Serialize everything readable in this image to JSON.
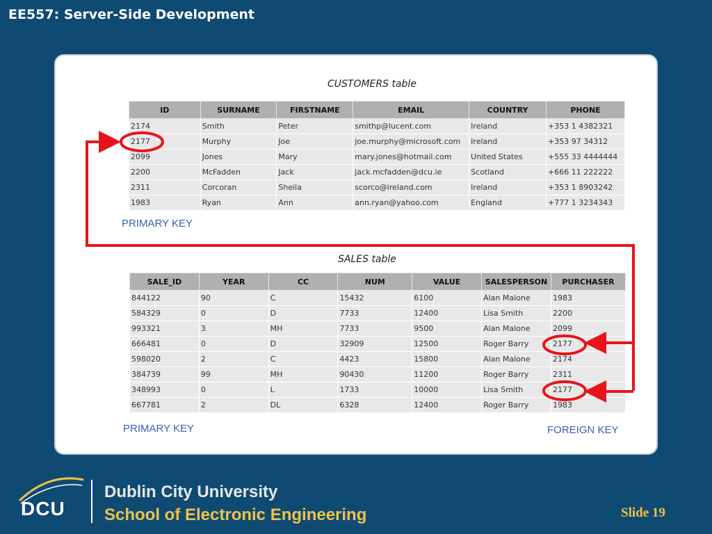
{
  "header": {
    "title": "EE557: Server-Side Development"
  },
  "customers": {
    "caption": "CUSTOMERS table",
    "columns": [
      "ID",
      "SURNAME",
      "FIRSTNAME",
      "EMAIL",
      "COUNTRY",
      "PHONE"
    ],
    "rows": [
      [
        "2174",
        "Smith",
        "Peter",
        "smithp@lucent.com",
        "Ireland",
        "+353 1 4382321"
      ],
      [
        "2177",
        "Murphy",
        "Joe",
        "joe.murphy@microsoft.com",
        "Ireland",
        "+353 97 34312"
      ],
      [
        "2099",
        "Jones",
        "Mary",
        "mary.jones@hotmail.com",
        "United States",
        "+555 33 4444444"
      ],
      [
        "2200",
        "McFadden",
        "Jack",
        "jack.mcfadden@dcu.ie",
        "Scotland",
        "+666 11 222222"
      ],
      [
        "2311",
        "Corcoran",
        "Sheila",
        "scorco@ireland.com",
        "Ireland",
        "+353 1 8903242"
      ],
      [
        "1983",
        "Ryan",
        "Ann",
        "ann.ryan@yahoo.com",
        "England",
        "+777 1 3234343"
      ]
    ],
    "primary_key_label": "PRIMARY KEY"
  },
  "sales": {
    "caption": "SALES table",
    "columns": [
      "SALE_ID",
      "YEAR",
      "CC",
      "NUM",
      "VALUE",
      "SALESPERSON",
      "PURCHASER"
    ],
    "rows": [
      [
        "844122",
        "90",
        "C",
        "15432",
        "6100",
        "Alan Malone",
        "1983"
      ],
      [
        "584329",
        "0",
        "D",
        "7733",
        "12400",
        "Lisa Smith",
        "2200"
      ],
      [
        "993321",
        "3",
        "MH",
        "7733",
        "9500",
        "Alan Malone",
        "2099"
      ],
      [
        "666481",
        "0",
        "D",
        "32909",
        "12500",
        "Roger Barry",
        "2177"
      ],
      [
        "598020",
        "2",
        "C",
        "4423",
        "15800",
        "Alan Malone",
        "2174"
      ],
      [
        "384739",
        "99",
        "MH",
        "90430",
        "11200",
        "Roger Barry",
        "2311"
      ],
      [
        "348993",
        "0",
        "L",
        "1733",
        "10000",
        "Lisa Smith",
        "2177"
      ],
      [
        "667781",
        "2",
        "DL",
        "6328",
        "12400",
        "Roger Barry",
        "1983"
      ]
    ],
    "primary_key_label": "PRIMARY KEY",
    "foreign_key_label": "FOREIGN KEY"
  },
  "footer": {
    "logo_text": "DCU",
    "university": "Dublin City University",
    "school": "School of Electronic Engineering",
    "slide_number": "Slide 19"
  },
  "colors": {
    "background": "#0f4a72",
    "highlight": "#e8141c",
    "key_label": "#3a5fb5",
    "accent_gold": "#f0c24a"
  }
}
